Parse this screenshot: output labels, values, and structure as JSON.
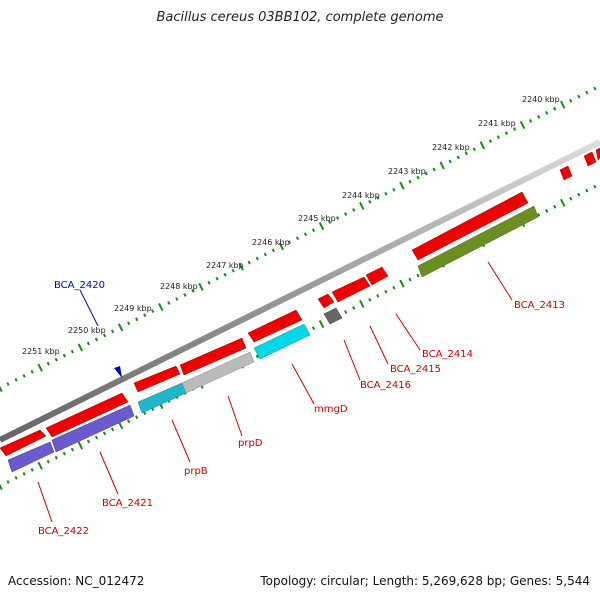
{
  "title": "Bacillus cereus 03BB102, complete genome",
  "footer": {
    "accession": "Accession: NC_012472",
    "summary": "Topology: circular; Length: 5,269,628 bp; Genes: 5,544"
  },
  "ticks": [
    "2240 kbp",
    "2241 kbp",
    "2242 kbp",
    "2243 kbp",
    "2244 kbp",
    "2245 kbp",
    "2246 kbp",
    "2247 kbp",
    "2248 kbp",
    "2249 kbp",
    "2250 kbp",
    "2251 kbp"
  ],
  "genes": [
    {
      "name": "BCA_2413",
      "color": "#cc0000"
    },
    {
      "name": "BCA_2414",
      "color": "#cc0000"
    },
    {
      "name": "BCA_2415",
      "color": "#cc0000"
    },
    {
      "name": "BCA_2416",
      "color": "#cc0000"
    },
    {
      "name": "mmgD",
      "color": "#cc0000"
    },
    {
      "name": "prpD",
      "color": "#cc0000"
    },
    {
      "name": "prpB",
      "color": "#cc0000"
    },
    {
      "name": "BCA_2421",
      "color": "#cc0000"
    },
    {
      "name": "BCA_2422",
      "color": "#cc0000"
    },
    {
      "name": "BCA_2420",
      "color": "#0000cc"
    }
  ],
  "colors": {
    "forward_cds": "#ee0000",
    "reverse_band": "#999999",
    "tick_green": "#1a8a1a",
    "cyan": "#00d8e8",
    "teal": "#20b8c8",
    "olive": "#6b8e23",
    "purple": "#6a5acd",
    "gray_feature": "#bbbbbb",
    "dark_gray": "#666666",
    "blue_marker": "#0000dd"
  }
}
